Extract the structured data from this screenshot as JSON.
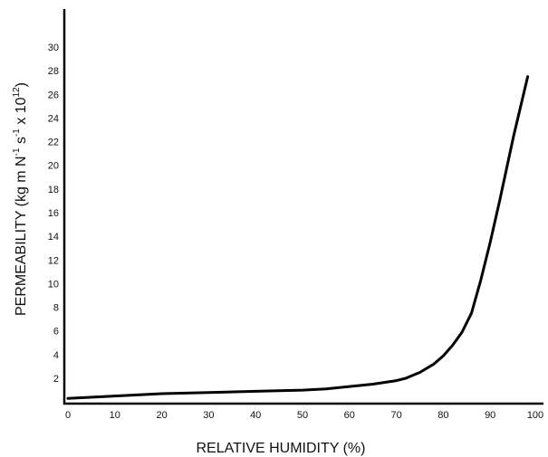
{
  "chart_data": {
    "type": "line",
    "title": "",
    "xlabel": "RELATIVE HUMIDITY (%)",
    "ylabel_parts": [
      "PERMEABILITY (kg m N",
      "-1",
      " s",
      "-1",
      " x 10",
      "12",
      ")"
    ],
    "xlim": [
      0,
      100
    ],
    "ylim": [
      0,
      32
    ],
    "x_ticks": [
      0,
      10,
      20,
      30,
      40,
      50,
      60,
      70,
      80,
      90,
      100
    ],
    "x_tick_labels": [
      "0",
      "10",
      "20",
      "30",
      "40",
      "50",
      "60",
      "70",
      "80",
      "90",
      "100"
    ],
    "y_ticks": [
      2,
      4,
      6,
      8,
      10,
      12,
      14,
      16,
      18,
      20,
      22,
      24,
      26,
      28,
      30
    ],
    "y_tick_labels": [
      "2",
      "4",
      "6",
      "8",
      "10",
      "12",
      "14",
      "16",
      "18",
      "20",
      "22",
      "24",
      "26",
      "28",
      "30"
    ],
    "grid": false,
    "series": [
      {
        "x": [
          0,
          10,
          20,
          30,
          40,
          50,
          55,
          60,
          65,
          70,
          72,
          75,
          78,
          80,
          82,
          84,
          86,
          88,
          90,
          92,
          95,
          98
        ],
        "y": [
          0.3,
          0.5,
          0.7,
          0.8,
          0.9,
          1.0,
          1.1,
          1.3,
          1.5,
          1.8,
          2.0,
          2.5,
          3.2,
          3.9,
          4.8,
          5.9,
          7.5,
          10.3,
          13.5,
          17.0,
          22.5,
          27.5
        ]
      }
    ]
  }
}
